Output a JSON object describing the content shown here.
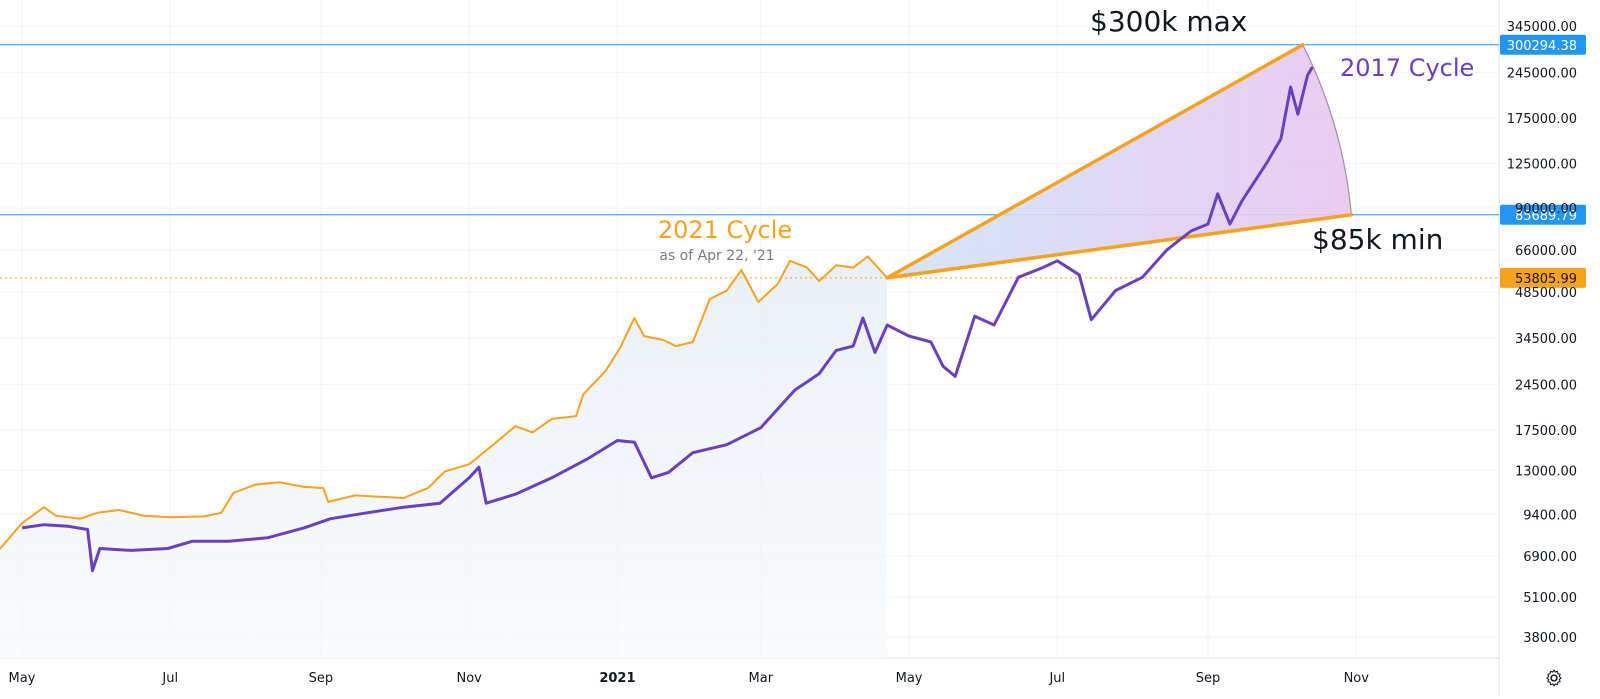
{
  "chart_data": {
    "type": "line",
    "scale": "log",
    "grid": true,
    "x_ticks": [
      "May",
      "Jul",
      "Sep",
      "Nov",
      "2021",
      "Mar",
      "May",
      "Jul",
      "Sep",
      "Nov"
    ],
    "y_ticks": [
      3800,
      5100,
      6900,
      9400,
      13000,
      17500,
      24500,
      34500,
      48500,
      66000,
      90000,
      125000,
      175000,
      245000,
      345000
    ],
    "y_tick_labels": [
      "3800.00",
      "5100.00",
      "6900.00",
      "9400.00",
      "13000.00",
      "17500.00",
      "24500.00",
      "34500.00",
      "48500.00",
      "66000.00",
      "90000.00",
      "125000.00",
      "175000.00",
      "245000.00",
      "345000.00"
    ],
    "ylim": [
      3300,
      400000
    ],
    "series": [
      {
        "name": "2021 Cycle",
        "color": "#f7a21b",
        "points": [
          [
            "2020-04-20",
            7000
          ],
          [
            "2020-05-01",
            8800
          ],
          [
            "2020-05-10",
            9900
          ],
          [
            "2020-05-15",
            9300
          ],
          [
            "2020-05-25",
            9100
          ],
          [
            "2020-06-01",
            9500
          ],
          [
            "2020-06-10",
            9700
          ],
          [
            "2020-06-20",
            9300
          ],
          [
            "2020-07-01",
            9200
          ],
          [
            "2020-07-15",
            9250
          ],
          [
            "2020-07-22",
            9500
          ],
          [
            "2020-07-27",
            11000
          ],
          [
            "2020-08-05",
            11700
          ],
          [
            "2020-08-15",
            11900
          ],
          [
            "2020-08-25",
            11500
          ],
          [
            "2020-09-02",
            11400
          ],
          [
            "2020-09-04",
            10300
          ],
          [
            "2020-09-15",
            10800
          ],
          [
            "2020-09-25",
            10700
          ],
          [
            "2020-10-05",
            10600
          ],
          [
            "2020-10-15",
            11400
          ],
          [
            "2020-10-22",
            12900
          ],
          [
            "2020-11-01",
            13600
          ],
          [
            "2020-11-10",
            15500
          ],
          [
            "2020-11-20",
            18000
          ],
          [
            "2020-11-27",
            17200
          ],
          [
            "2020-12-05",
            19000
          ],
          [
            "2020-12-15",
            19400
          ],
          [
            "2020-12-18",
            22800
          ],
          [
            "2020-12-27",
            27000
          ],
          [
            "2021-01-02",
            32000
          ],
          [
            "2021-01-08",
            40000
          ],
          [
            "2021-01-12",
            35000
          ],
          [
            "2021-01-20",
            34000
          ],
          [
            "2021-01-25",
            32500
          ],
          [
            "2021-02-01",
            33500
          ],
          [
            "2021-02-08",
            46000
          ],
          [
            "2021-02-15",
            49000
          ],
          [
            "2021-02-21",
            57000
          ],
          [
            "2021-02-28",
            45000
          ],
          [
            "2021-03-08",
            51500
          ],
          [
            "2021-03-13",
            61000
          ],
          [
            "2021-03-20",
            58000
          ],
          [
            "2021-03-25",
            52500
          ],
          [
            "2021-04-01",
            59000
          ],
          [
            "2021-04-08",
            58000
          ],
          [
            "2021-04-14",
            63000
          ],
          [
            "2021-04-20",
            56000
          ],
          [
            "2021-04-22",
            53806
          ]
        ]
      },
      {
        "name": "2017 Cycle",
        "color": "#6a3fc4",
        "points": [
          [
            "2020-05-01",
            8500
          ],
          [
            "2020-05-10",
            8700
          ],
          [
            "2020-05-20",
            8600
          ],
          [
            "2020-05-28",
            8400
          ],
          [
            "2020-05-30",
            6200
          ],
          [
            "2020-06-02",
            7300
          ],
          [
            "2020-06-15",
            7200
          ],
          [
            "2020-06-30",
            7300
          ],
          [
            "2020-07-10",
            7700
          ],
          [
            "2020-07-25",
            7700
          ],
          [
            "2020-08-10",
            7900
          ],
          [
            "2020-08-25",
            8500
          ],
          [
            "2020-09-05",
            9100
          ],
          [
            "2020-09-20",
            9500
          ],
          [
            "2020-10-05",
            9900
          ],
          [
            "2020-10-20",
            10200
          ],
          [
            "2020-11-01",
            12300
          ],
          [
            "2020-11-05",
            13300
          ],
          [
            "2020-11-08",
            10200
          ],
          [
            "2020-11-20",
            10900
          ],
          [
            "2020-12-05",
            12300
          ],
          [
            "2020-12-20",
            14200
          ],
          [
            "2021-01-01",
            16200
          ],
          [
            "2021-01-08",
            16000
          ],
          [
            "2021-01-15",
            12300
          ],
          [
            "2021-01-22",
            12800
          ],
          [
            "2021-02-01",
            14800
          ],
          [
            "2021-02-15",
            15700
          ],
          [
            "2021-03-01",
            17800
          ],
          [
            "2021-03-15",
            23500
          ],
          [
            "2021-03-25",
            26500
          ],
          [
            "2021-04-01",
            31500
          ],
          [
            "2021-04-08",
            32500
          ],
          [
            "2021-04-12",
            40000
          ],
          [
            "2021-04-17",
            31000
          ],
          [
            "2021-04-22",
            38000
          ],
          [
            "2021-05-01",
            35000
          ],
          [
            "2021-05-10",
            33500
          ],
          [
            "2021-05-15",
            28000
          ],
          [
            "2021-05-20",
            26000
          ],
          [
            "2021-05-28",
            40500
          ],
          [
            "2021-06-05",
            38000
          ],
          [
            "2021-06-15",
            54000
          ],
          [
            "2021-06-25",
            58000
          ],
          [
            "2021-07-01",
            61000
          ],
          [
            "2021-07-10",
            55000
          ],
          [
            "2021-07-15",
            39500
          ],
          [
            "2021-07-25",
            49000
          ],
          [
            "2021-08-05",
            54000
          ],
          [
            "2021-08-15",
            66000
          ],
          [
            "2021-08-25",
            76000
          ],
          [
            "2021-09-01",
            80000
          ],
          [
            "2021-09-05",
            100000
          ],
          [
            "2021-09-10",
            80000
          ],
          [
            "2021-09-15",
            95000
          ],
          [
            "2021-09-25",
            125000
          ],
          [
            "2021-10-01",
            150000
          ],
          [
            "2021-10-05",
            220000
          ],
          [
            "2021-10-08",
            180000
          ],
          [
            "2021-10-12",
            240000
          ],
          [
            "2021-10-14",
            255000
          ]
        ]
      }
    ],
    "horizontal_lines": [
      {
        "value": 300294.38,
        "label": "300294.38",
        "color": "#2196f3"
      },
      {
        "value": 85689.79,
        "label": "85689.79",
        "color": "#2196f3"
      },
      {
        "value": 53805.99,
        "label": "53805.99",
        "color": "#f7a21b",
        "style": "dotted"
      }
    ],
    "projection_fan": {
      "origin": [
        "2021-04-22",
        53806
      ],
      "upper": [
        "2021-10-10",
        300294
      ],
      "lower": [
        "2021-10-30",
        85690
      ],
      "color": "#f7a21b"
    },
    "annotations": {
      "cycle_2021_title": "2021 Cycle",
      "cycle_2021_note": "as of Apr 22, '21",
      "cycle_2017_title": "2017 Cycle",
      "max_label": "$300k max",
      "min_label": "$85k min"
    }
  },
  "toolbar": {
    "settings_icon": "gear-icon"
  }
}
